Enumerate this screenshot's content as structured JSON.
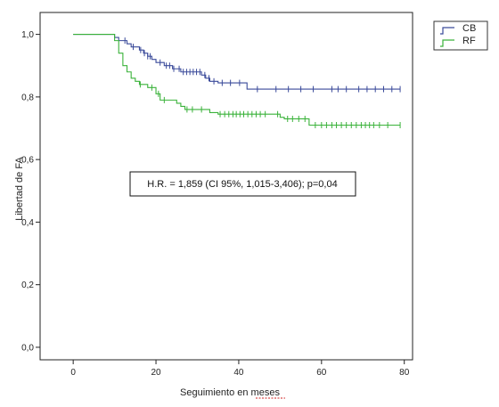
{
  "chart_data": {
    "type": "line",
    "subtype": "kaplan-meier step",
    "title": "",
    "xlabel": "Seguimiento en meses",
    "ylabel": "Libertad de FA",
    "xlim": [
      -8,
      82
    ],
    "ylim": [
      -0.04,
      1.07
    ],
    "x_ticks": [
      0,
      20,
      40,
      60,
      80
    ],
    "x_tick_labels": [
      "0",
      "20",
      "40",
      "60",
      "80"
    ],
    "y_ticks": [
      0.0,
      0.2,
      0.4,
      0.6,
      0.8,
      1.0
    ],
    "y_tick_labels": [
      "0,0",
      "0,2",
      "0,4",
      "0,6",
      "0,8",
      "1,0"
    ],
    "grid": false,
    "legend": {
      "position": "outside-top-right",
      "entries": [
        "CB",
        "RF"
      ]
    },
    "annotation": "H.R. = 1,859 (CI 95%, 1,015-3,406); p=0,04",
    "series": [
      {
        "name": "CB",
        "color": "#3a4a9a",
        "steps": [
          [
            0,
            1.0
          ],
          [
            10,
            0.99
          ],
          [
            11,
            0.98
          ],
          [
            13,
            0.97
          ],
          [
            14,
            0.96
          ],
          [
            16,
            0.95
          ],
          [
            17,
            0.94
          ],
          [
            18,
            0.93
          ],
          [
            19,
            0.92
          ],
          [
            20,
            0.91
          ],
          [
            22,
            0.9
          ],
          [
            24,
            0.89
          ],
          [
            26,
            0.88
          ],
          [
            31,
            0.87
          ],
          [
            32,
            0.86
          ],
          [
            33,
            0.85
          ],
          [
            35,
            0.845
          ],
          [
            42,
            0.825
          ],
          [
            79,
            0.825
          ]
        ],
        "censored_x": [
          12.5,
          14.5,
          16.3,
          17.2,
          18,
          18.6,
          21,
          22.5,
          23.3,
          24.3,
          25.6,
          26.6,
          27.4,
          28.2,
          29,
          29.8,
          30.6,
          31.8,
          32.8,
          34,
          36,
          38,
          40.2,
          44.5,
          49,
          52,
          55,
          58,
          62.5,
          64,
          66,
          69,
          71,
          73,
          75,
          77,
          79
        ]
      },
      {
        "name": "RF",
        "color": "#3ab23a",
        "steps": [
          [
            0,
            1.0
          ],
          [
            10,
            0.98
          ],
          [
            11,
            0.94
          ],
          [
            12,
            0.9
          ],
          [
            13,
            0.88
          ],
          [
            14,
            0.86
          ],
          [
            15,
            0.85
          ],
          [
            16,
            0.84
          ],
          [
            18,
            0.83
          ],
          [
            20,
            0.81
          ],
          [
            21,
            0.79
          ],
          [
            25,
            0.78
          ],
          [
            26,
            0.77
          ],
          [
            27,
            0.76
          ],
          [
            33,
            0.75
          ],
          [
            35,
            0.745
          ],
          [
            50,
            0.735
          ],
          [
            51,
            0.73
          ],
          [
            57,
            0.71
          ],
          [
            79,
            0.71
          ]
        ],
        "censored_x": [
          16.2,
          19,
          20.6,
          22,
          27.5,
          28.8,
          31,
          35.5,
          36.6,
          37.6,
          38.6,
          39.4,
          40.3,
          41.2,
          42.2,
          43.2,
          44.2,
          45.2,
          46.4,
          49.4,
          51.8,
          53,
          54.5,
          56,
          58.5,
          60,
          61.2,
          62.5,
          63.6,
          64.8,
          66,
          67.2,
          68.4,
          69.6,
          70.6,
          71.6,
          72.6,
          74,
          76,
          79
        ]
      }
    ]
  }
}
